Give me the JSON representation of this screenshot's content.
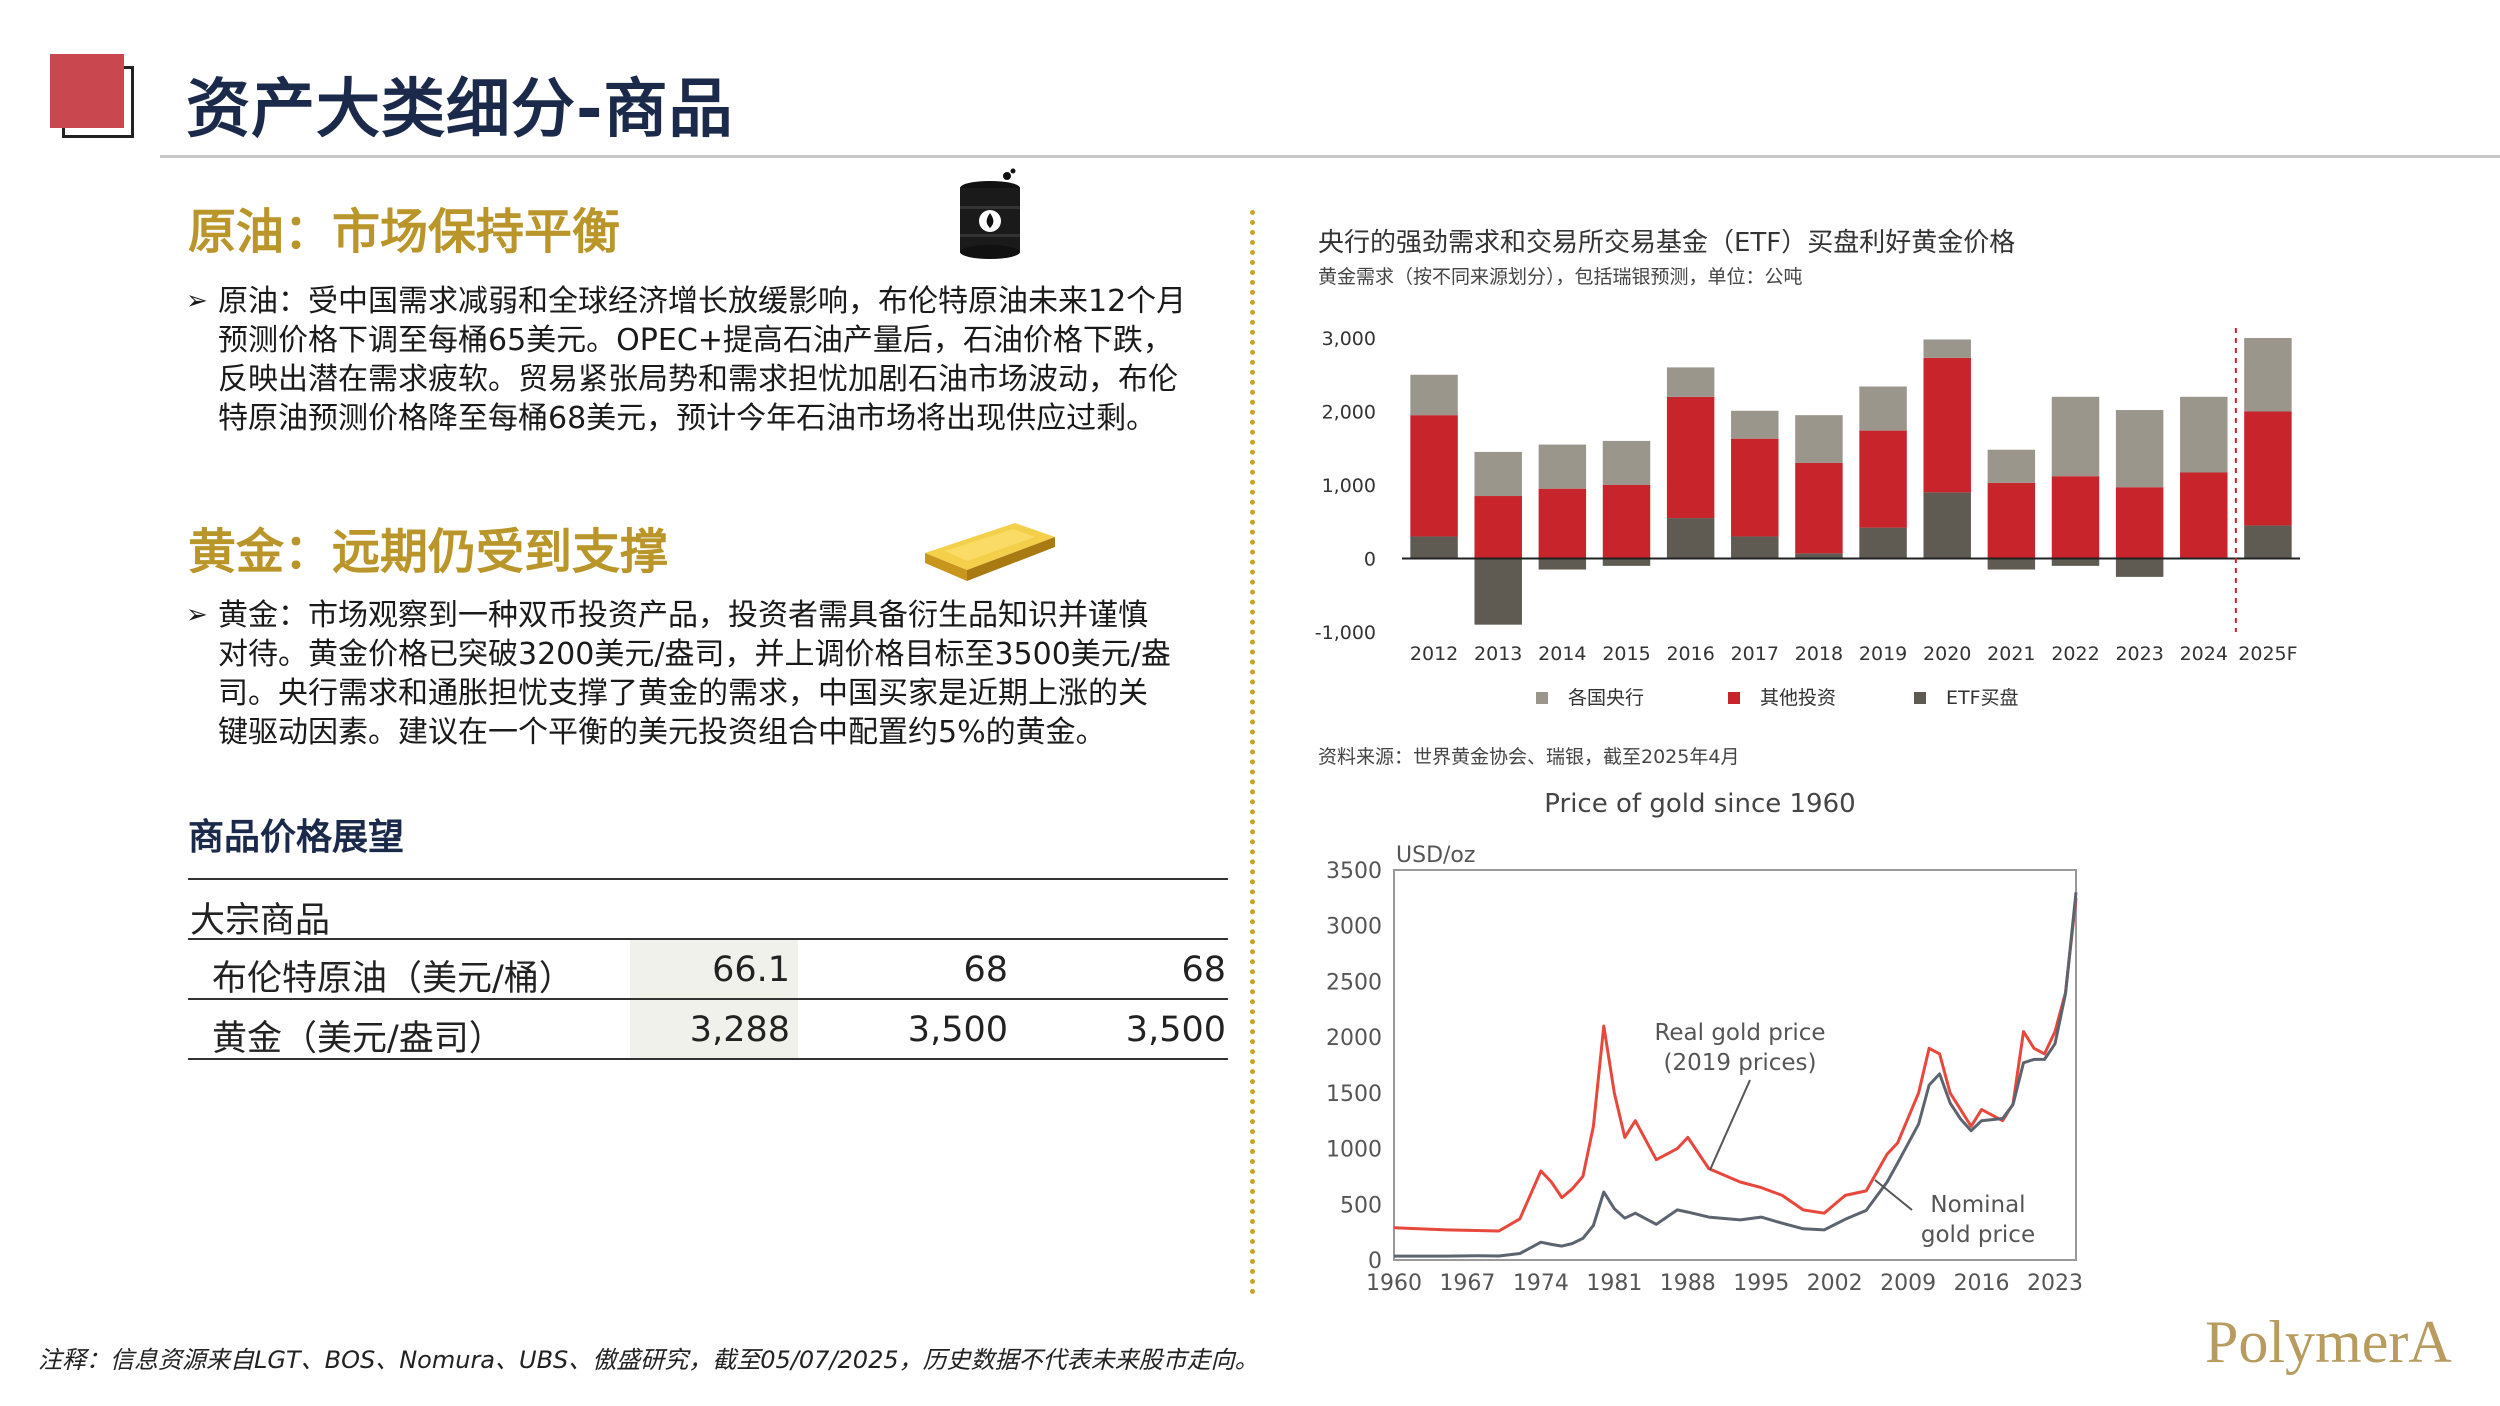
{
  "header": {
    "title": "资产大类细分-商品"
  },
  "oil": {
    "title": "原油：市场保持平衡",
    "bullet_lines": [
      "原油：受中国需求减弱和全球经济增长放缓影响，布伦特原油未来12个月",
      "预测价格下调至每桶65美元。OPEC+提高石油产量后，石油价格下跌，",
      "反映出潜在需求疲软。贸易紧张局势和需求担忧加剧石油市场波动，布伦",
      "特原油预测价格降至每桶68美元，预计今年石油市场将出现供应过剩。"
    ]
  },
  "gold": {
    "title": "黄金：远期仍受到支撑",
    "bullet_lines": [
      "黄金：市场观察到一种双币投资产品，投资者需具备衍生品知识并谨慎",
      "对待。黄金价格已突破3200美元/盎司，并上调价格目标至3500美元/盎",
      "司。央行需求和通胀担忧支撑了黄金的需求，中国买家是近期上涨的关",
      "键驱动因素。建议在一个平衡的美元投资组合中配置约5%的黄金。"
    ]
  },
  "table": {
    "title": "商品价格展望",
    "group": "大宗商品",
    "rows": [
      {
        "label": "布伦特原油（美元/桶）",
        "values": [
          "66.1",
          "68",
          "68"
        ]
      },
      {
        "label": "黄金（美元/盎司）",
        "values": [
          "3,288",
          "3,500",
          "3,500"
        ]
      }
    ]
  },
  "chart1_text": {
    "title": "央行的强劲需求和交易所交易基金（ETF）买盘利好黄金价格",
    "subtitle": "黄金需求（按不同来源划分），包括瑞银预测，单位：公吨",
    "source": "资料来源：世界黄金协会、瑞银，截至2025年4月"
  },
  "chart_data": [
    {
      "type": "bar",
      "stacked": true,
      "title": "央行的强劲需求和交易所交易基金（ETF）买盘利好黄金价格",
      "ylabel": "",
      "ylim": [
        -1000,
        3000
      ],
      "yticks": [
        "-1,000",
        "0",
        "1,000",
        "2,000",
        "3,000"
      ],
      "categories": [
        "2012",
        "2013",
        "2014",
        "2015",
        "2016",
        "2017",
        "2018",
        "2019",
        "2020",
        "2021",
        "2022",
        "2023",
        "2024",
        "2025F"
      ],
      "series": [
        {
          "name": "ETF买盘",
          "color": "#5f5b52",
          "values": [
            300,
            -900,
            -150,
            -100,
            550,
            300,
            70,
            420,
            900,
            -150,
            -100,
            -250,
            0,
            450
          ]
        },
        {
          "name": "其他投资",
          "color": "#c8242c",
          "values": [
            1650,
            850,
            950,
            1000,
            1650,
            1330,
            1230,
            1320,
            1830,
            1030,
            1120,
            970,
            1170,
            1550
          ]
        },
        {
          "name": "各国央行",
          "color": "#9a968c",
          "values": [
            550,
            600,
            600,
            600,
            400,
            380,
            650,
            600,
            250,
            450,
            1080,
            1050,
            1030,
            1000
          ]
        }
      ],
      "legend": [
        "各国央行",
        "其他投资",
        "ETF买盘"
      ],
      "legend_position": "bottom",
      "forecast_divider_after": "2024",
      "grid": false
    },
    {
      "type": "line",
      "title": "Price of gold since 1960",
      "ylabel": "USD/oz",
      "ylim": [
        0,
        3500
      ],
      "yticks": [
        "0",
        "500",
        "1000",
        "1500",
        "2000",
        "2500",
        "3000",
        "3500"
      ],
      "xticks": [
        "1960",
        "1967",
        "1974",
        "1981",
        "1988",
        "1995",
        "2002",
        "2009",
        "2016",
        "2023"
      ],
      "xlim": [
        1960,
        2025
      ],
      "series": [
        {
          "name": "Real gold price (2019 prices)",
          "color": "#e8473c",
          "x": [
            1960,
            1965,
            1970,
            1972,
            1974,
            1975,
            1976,
            1977,
            1978,
            1979,
            1980,
            1981,
            1982,
            1983,
            1985,
            1987,
            1988,
            1990,
            1993,
            1995,
            1997,
            1999,
            2001,
            2003,
            2005,
            2007,
            2008,
            2010,
            2011,
            2012,
            2013,
            2014,
            2015,
            2016,
            2018,
            2019,
            2020,
            2021,
            2022,
            2023,
            2024,
            2025
          ],
          "y": [
            290,
            270,
            260,
            370,
            800,
            700,
            560,
            640,
            750,
            1200,
            2100,
            1500,
            1100,
            1250,
            900,
            1000,
            1100,
            820,
            700,
            650,
            580,
            450,
            420,
            580,
            620,
            950,
            1050,
            1500,
            1900,
            1850,
            1500,
            1350,
            1200,
            1350,
            1250,
            1400,
            2050,
            1900,
            1850,
            2050,
            2400,
            3250
          ]
        },
        {
          "name": "Nominal gold price",
          "color": "#5c6470",
          "x": [
            1960,
            1965,
            1968,
            1970,
            1972,
            1974,
            1975,
            1976,
            1977,
            1978,
            1979,
            1980,
            1981,
            1982,
            1983,
            1985,
            1987,
            1988,
            1990,
            1993,
            1995,
            1997,
            1999,
            2001,
            2003,
            2005,
            2007,
            2008,
            2010,
            2011,
            2012,
            2013,
            2014,
            2015,
            2016,
            2018,
            2019,
            2020,
            2021,
            2022,
            2023,
            2024,
            2025
          ],
          "y": [
            35,
            35,
            38,
            36,
            58,
            160,
            140,
            125,
            148,
            195,
            310,
            610,
            460,
            375,
            420,
            320,
            450,
            430,
            385,
            360,
            385,
            330,
            280,
            270,
            365,
            445,
            700,
            870,
            1220,
            1570,
            1670,
            1410,
            1265,
            1160,
            1250,
            1270,
            1395,
            1770,
            1800,
            1800,
            1940,
            2390,
            3300
          ]
        }
      ],
      "annotations": [
        "Real gold price\n(2019 prices)",
        "Nominal\ngold price"
      ]
    }
  ],
  "footer": {
    "note": "注释：信息资源来自LGT、BOS、Nomura、UBS、傲盛研究，截至05/07/2025，历史数据不代表未来股市走向。",
    "brand": "PolymerA"
  }
}
